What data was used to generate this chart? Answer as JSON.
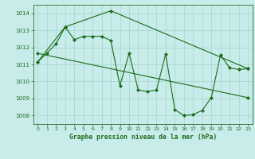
{
  "title": "Graphe pression niveau de la mer (hPa)",
  "background_color": "#c8ece9",
  "grid_color": "#a8d8d4",
  "line_color": "#1a6b1a",
  "xlim": [
    -0.5,
    23.5
  ],
  "ylim": [
    1007.5,
    1014.5
  ],
  "xticks": [
    0,
    1,
    2,
    3,
    4,
    5,
    6,
    7,
    8,
    9,
    10,
    11,
    12,
    13,
    14,
    15,
    16,
    17,
    18,
    19,
    20,
    21,
    22,
    23
  ],
  "yticks": [
    1008,
    1009,
    1010,
    1011,
    1012,
    1013,
    1014
  ],
  "line1_x": [
    0,
    1,
    2,
    3,
    4,
    5,
    6,
    7,
    8,
    9,
    10,
    11,
    12,
    13,
    14,
    15,
    16,
    17,
    18,
    19,
    20,
    21,
    22,
    23
  ],
  "line1_y": [
    1011.15,
    1011.65,
    1012.2,
    1013.2,
    1012.45,
    1012.65,
    1012.65,
    1012.65,
    1012.4,
    1009.75,
    1011.65,
    1009.5,
    1009.4,
    1009.5,
    1011.6,
    1008.35,
    1008.0,
    1008.05,
    1008.3,
    1009.05,
    1011.55,
    1010.8,
    1010.7,
    1010.75
  ],
  "line2_x": [
    0,
    3,
    8,
    23
  ],
  "line2_y": [
    1011.15,
    1013.2,
    1014.15,
    1010.75
  ],
  "line3_x": [
    0,
    23
  ],
  "line3_y": [
    1011.65,
    1009.05
  ]
}
